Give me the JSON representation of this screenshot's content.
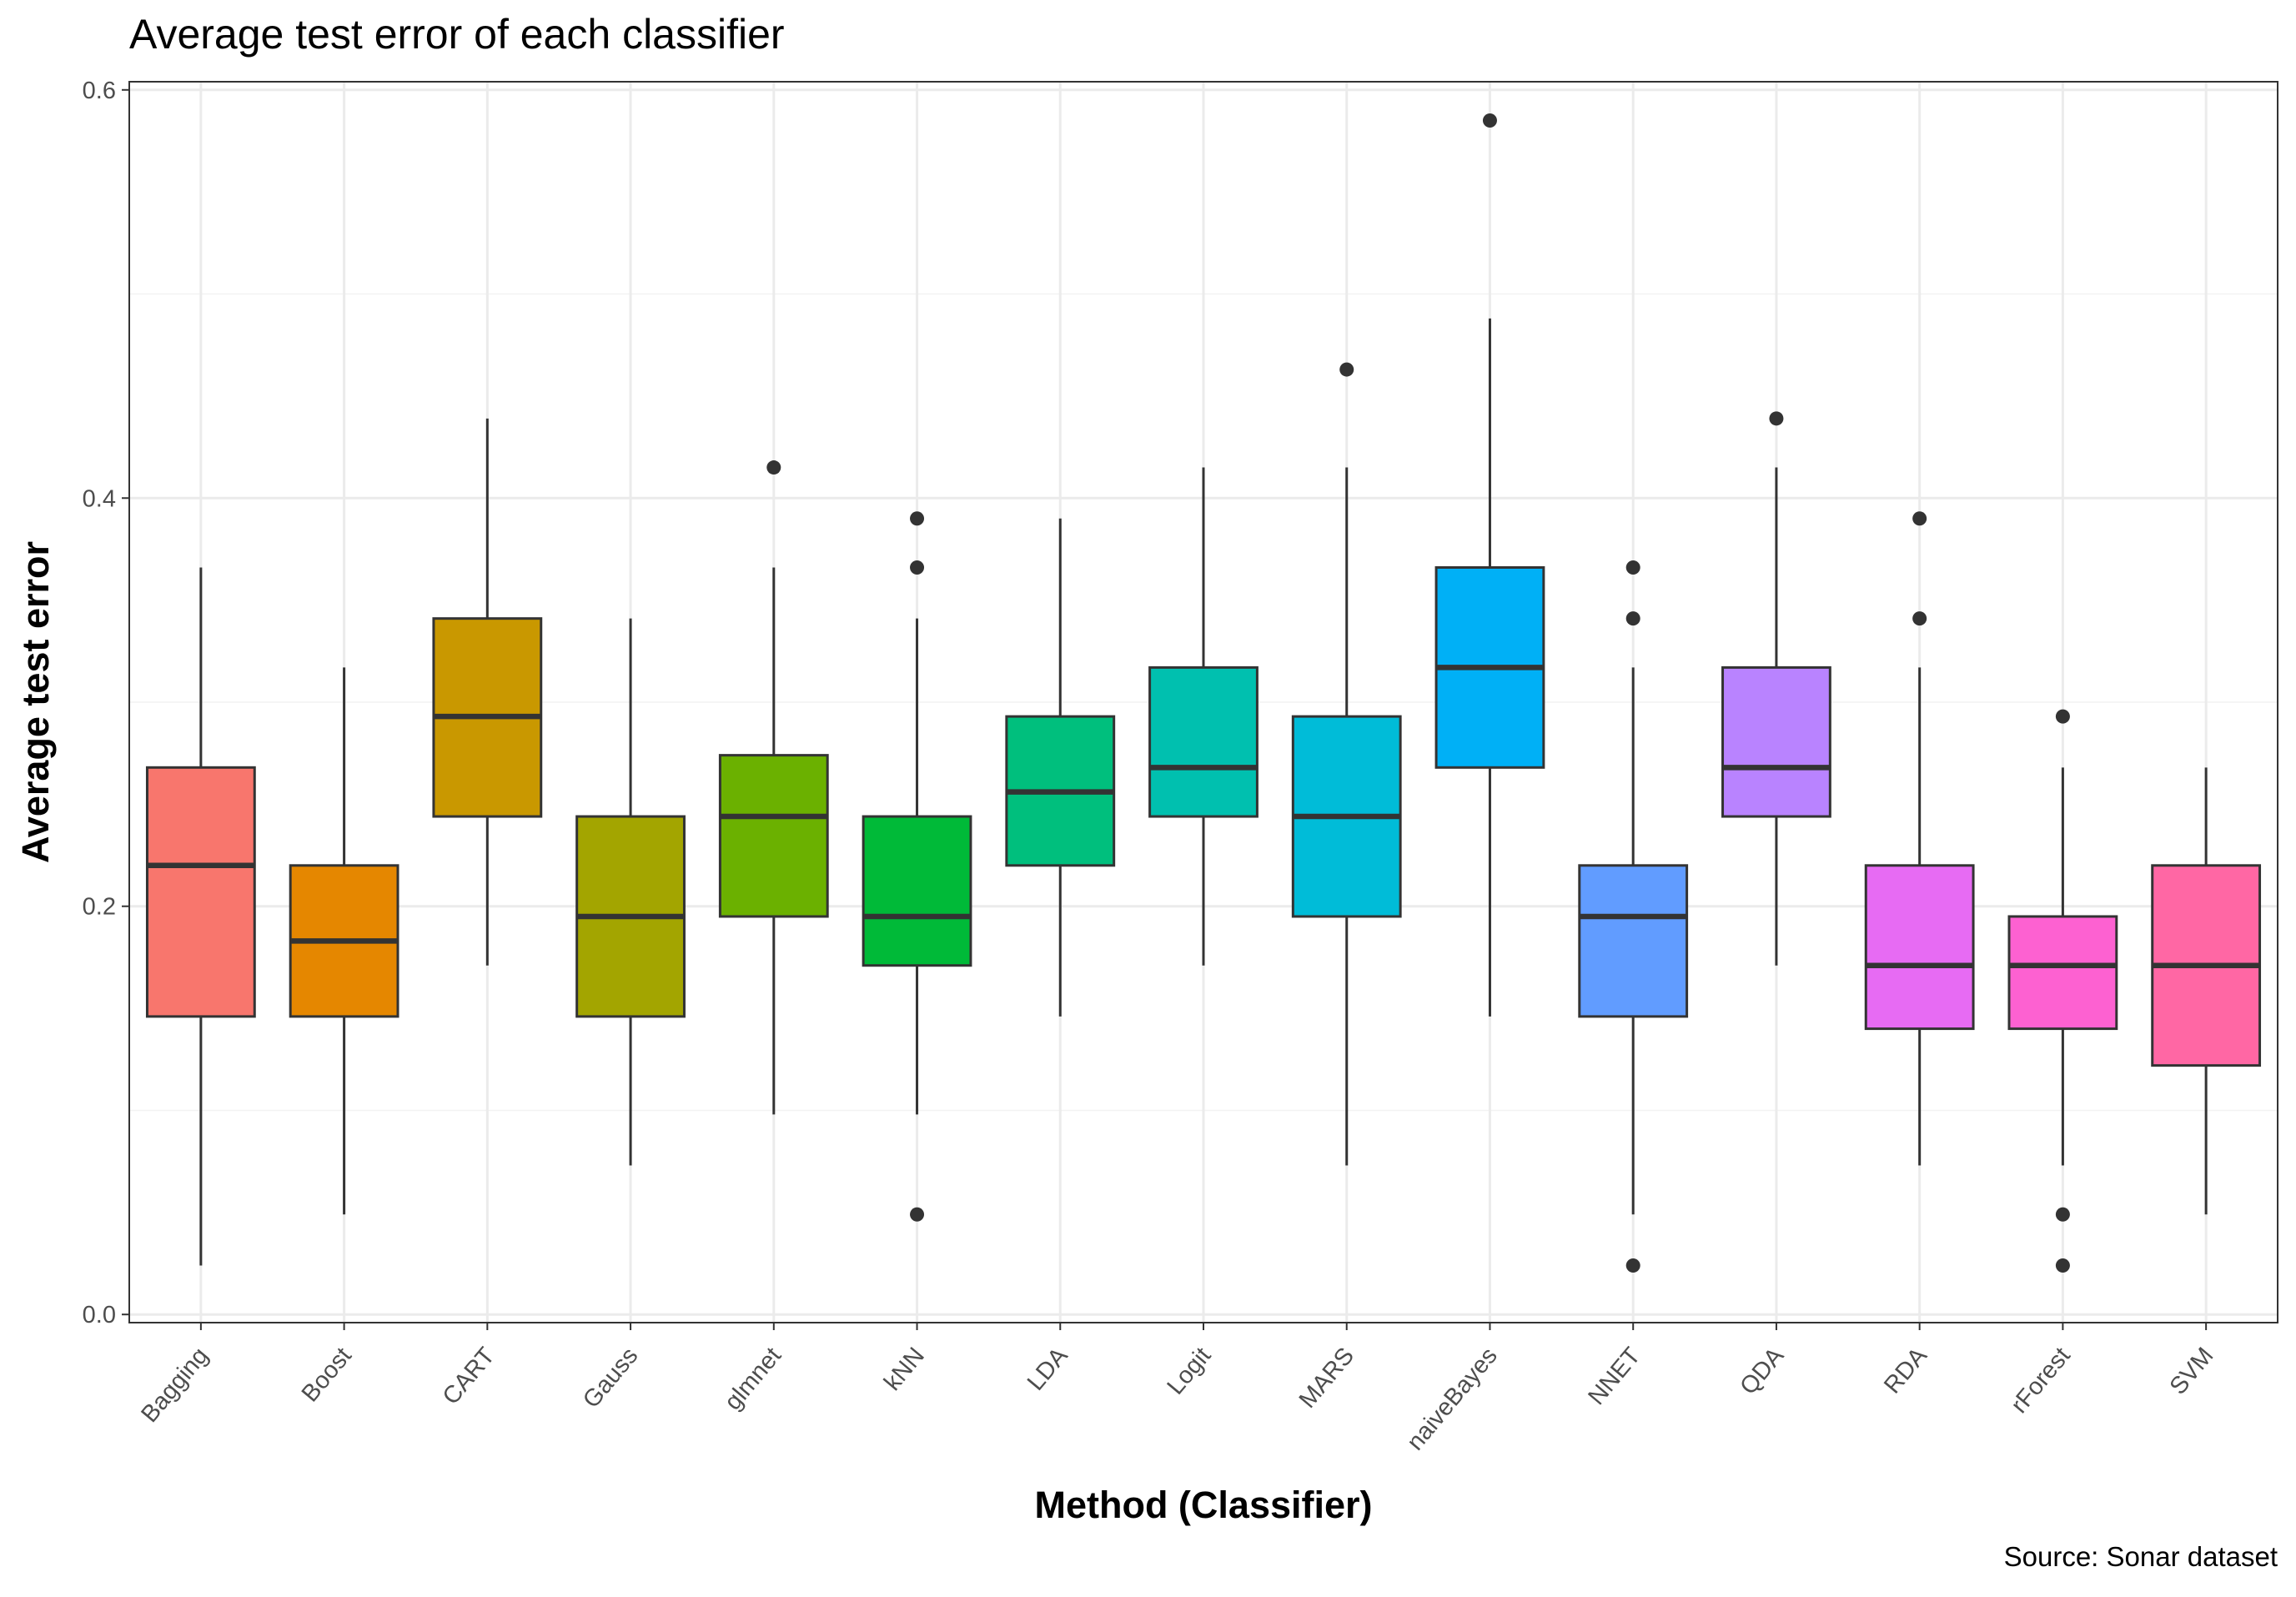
{
  "chart_data": {
    "type": "boxplot",
    "title": "Average test error of each classifier",
    "xlabel": "Method (Classifier)",
    "ylabel": "Average test error",
    "caption": "Source: Sonar dataset",
    "ylim": [
      -0.004,
      0.604
    ],
    "yticks": [
      0.0,
      0.2,
      0.4,
      0.6
    ],
    "ytick_labels": [
      "0.0",
      "0.2",
      "0.4",
      "0.6"
    ],
    "grid": true,
    "legend": "none",
    "categories": [
      "Bagging",
      "Boost",
      "CART",
      "Gauss",
      "glmnet",
      "kNN",
      "LDA",
      "Logit",
      "MARS",
      "naiveBayes",
      "NNET",
      "QDA",
      "RDA",
      "rForest",
      "SVM"
    ],
    "boxes": [
      {
        "category": "Bagging",
        "color": "#F8766D",
        "lower_whisker": 0.024,
        "q1": 0.146,
        "median": 0.22,
        "q3": 0.268,
        "upper_whisker": 0.366,
        "outliers": []
      },
      {
        "category": "Boost",
        "color": "#E58700",
        "lower_whisker": 0.049,
        "q1": 0.146,
        "median": 0.183,
        "q3": 0.22,
        "upper_whisker": 0.317,
        "outliers": []
      },
      {
        "category": "CART",
        "color": "#C99800",
        "lower_whisker": 0.171,
        "q1": 0.244,
        "median": 0.293,
        "q3": 0.341,
        "upper_whisker": 0.439,
        "outliers": []
      },
      {
        "category": "Gauss",
        "color": "#A3A500",
        "lower_whisker": 0.073,
        "q1": 0.146,
        "median": 0.195,
        "q3": 0.244,
        "upper_whisker": 0.341,
        "outliers": []
      },
      {
        "category": "glmnet",
        "color": "#6BB100",
        "lower_whisker": 0.098,
        "q1": 0.195,
        "median": 0.244,
        "q3": 0.274,
        "upper_whisker": 0.366,
        "outliers": [
          0.415
        ]
      },
      {
        "category": "kNN",
        "color": "#00BA38",
        "lower_whisker": 0.098,
        "q1": 0.171,
        "median": 0.195,
        "q3": 0.244,
        "upper_whisker": 0.341,
        "outliers": [
          0.049,
          0.366,
          0.39
        ]
      },
      {
        "category": "LDA",
        "color": "#00BF7D",
        "lower_whisker": 0.146,
        "q1": 0.22,
        "median": 0.256,
        "q3": 0.293,
        "upper_whisker": 0.39,
        "outliers": []
      },
      {
        "category": "Logit",
        "color": "#00C0AF",
        "lower_whisker": 0.171,
        "q1": 0.244,
        "median": 0.268,
        "q3": 0.317,
        "upper_whisker": 0.415,
        "outliers": []
      },
      {
        "category": "MARS",
        "color": "#00BCD8",
        "lower_whisker": 0.073,
        "q1": 0.195,
        "median": 0.244,
        "q3": 0.293,
        "upper_whisker": 0.415,
        "outliers": [
          0.463
        ]
      },
      {
        "category": "naiveBayes",
        "color": "#00B0F6",
        "lower_whisker": 0.146,
        "q1": 0.268,
        "median": 0.317,
        "q3": 0.366,
        "upper_whisker": 0.488,
        "outliers": [
          0.585
        ]
      },
      {
        "category": "NNET",
        "color": "#619CFF",
        "lower_whisker": 0.049,
        "q1": 0.146,
        "median": 0.195,
        "q3": 0.22,
        "upper_whisker": 0.317,
        "outliers": [
          0.024,
          0.341,
          0.366
        ]
      },
      {
        "category": "QDA",
        "color": "#B983FF",
        "lower_whisker": 0.171,
        "q1": 0.244,
        "median": 0.268,
        "q3": 0.317,
        "upper_whisker": 0.415,
        "outliers": [
          0.439
        ]
      },
      {
        "category": "RDA",
        "color": "#E76BF3",
        "lower_whisker": 0.073,
        "q1": 0.14,
        "median": 0.171,
        "q3": 0.22,
        "upper_whisker": 0.317,
        "outliers": [
          0.341,
          0.39
        ]
      },
      {
        "category": "rForest",
        "color": "#FD61D1",
        "lower_whisker": 0.073,
        "q1": 0.14,
        "median": 0.171,
        "q3": 0.195,
        "upper_whisker": 0.268,
        "outliers": [
          0.024,
          0.049,
          0.293
        ]
      },
      {
        "category": "SVM",
        "color": "#FF67A4",
        "lower_whisker": 0.049,
        "q1": 0.122,
        "median": 0.171,
        "q3": 0.22,
        "upper_whisker": 0.268,
        "outliers": []
      }
    ]
  }
}
